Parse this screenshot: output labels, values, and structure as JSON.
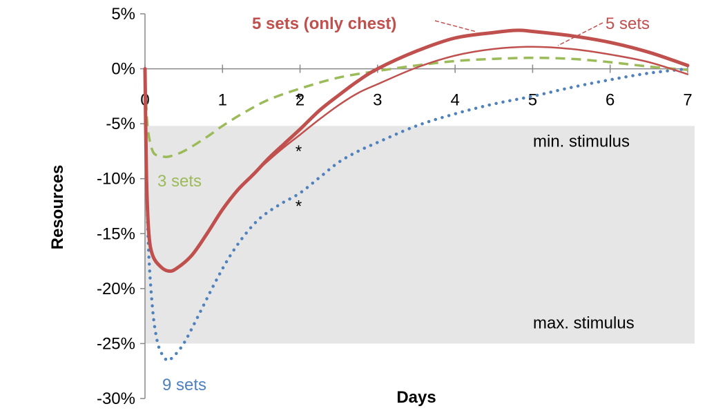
{
  "chart_data": {
    "type": "line",
    "xlabel": "Days",
    "ylabel": "Resources",
    "xlim": [
      0,
      7
    ],
    "ylim": [
      -30,
      5
    ],
    "x_ticks": [
      "0",
      "1",
      "2",
      "3",
      "4",
      "5",
      "6",
      "7"
    ],
    "y_ticks": [
      "5%",
      "0%",
      "-5%",
      "-10%",
      "-15%",
      "-20%",
      "-25%",
      "-30%"
    ],
    "grid": false,
    "band": {
      "from": -5.2,
      "to": -25,
      "color": "#e6e6e6"
    },
    "band_labels": {
      "top": "min. stimulus",
      "bottom": "max. stimulus"
    },
    "series": [
      {
        "name": "5 sets (only chest)",
        "color": "#c0504d",
        "style": "solid-thick",
        "points": [
          [
            0,
            0
          ],
          [
            0.02,
            -10
          ],
          [
            0.05,
            -15
          ],
          [
            0.1,
            -17
          ],
          [
            0.2,
            -18
          ],
          [
            0.3,
            -18.4
          ],
          [
            0.4,
            -18.2
          ],
          [
            0.6,
            -17
          ],
          [
            0.8,
            -15
          ],
          [
            1,
            -12.8
          ],
          [
            1.2,
            -11
          ],
          [
            1.4,
            -9.6
          ],
          [
            1.6,
            -8.1
          ],
          [
            1.8,
            -6.8
          ],
          [
            2,
            -5.5
          ],
          [
            2.25,
            -3.8
          ],
          [
            2.5,
            -2.4
          ],
          [
            2.75,
            -1.1
          ],
          [
            3,
            0
          ],
          [
            3.5,
            1.6
          ],
          [
            4,
            2.8
          ],
          [
            4.5,
            3.3
          ],
          [
            4.8,
            3.5
          ],
          [
            5,
            3.4
          ],
          [
            5.5,
            3.0
          ],
          [
            6,
            2.4
          ],
          [
            6.5,
            1.5
          ],
          [
            7,
            0.3
          ]
        ]
      },
      {
        "name": "5 sets",
        "color": "#c0504d",
        "style": "solid-thin",
        "points": [
          [
            0,
            0
          ],
          [
            0.02,
            -10
          ],
          [
            0.05,
            -15
          ],
          [
            0.1,
            -17
          ],
          [
            0.2,
            -18
          ],
          [
            0.3,
            -18.4
          ],
          [
            0.4,
            -18.2
          ],
          [
            0.6,
            -17
          ],
          [
            0.8,
            -15
          ],
          [
            1,
            -12.8
          ],
          [
            1.2,
            -11
          ],
          [
            1.4,
            -9.6
          ],
          [
            1.6,
            -8.3
          ],
          [
            1.8,
            -7.1
          ],
          [
            2,
            -6.0
          ],
          [
            2.25,
            -4.6
          ],
          [
            2.5,
            -3.3
          ],
          [
            2.75,
            -2.2
          ],
          [
            3,
            -1.4
          ],
          [
            3.5,
            0.1
          ],
          [
            4,
            1.2
          ],
          [
            4.5,
            1.8
          ],
          [
            5,
            2.0
          ],
          [
            5.5,
            1.8
          ],
          [
            6,
            1.3
          ],
          [
            6.5,
            0.6
          ],
          [
            7,
            -0.5
          ]
        ]
      },
      {
        "name": "3 sets",
        "color": "#9bbb59",
        "style": "dashed",
        "points": [
          [
            0,
            0
          ],
          [
            0.03,
            -5
          ],
          [
            0.1,
            -7.5
          ],
          [
            0.2,
            -7.9
          ],
          [
            0.3,
            -8.0
          ],
          [
            0.5,
            -7.5
          ],
          [
            0.8,
            -6.2
          ],
          [
            1,
            -5.2
          ],
          [
            1.3,
            -3.9
          ],
          [
            1.6,
            -2.8
          ],
          [
            2,
            -1.8
          ],
          [
            2.5,
            -0.8
          ],
          [
            3,
            -0.2
          ],
          [
            3.5,
            0.3
          ],
          [
            4,
            0.7
          ],
          [
            4.5,
            0.9
          ],
          [
            5,
            1.0
          ],
          [
            5.5,
            0.9
          ],
          [
            6,
            0.6
          ],
          [
            6.5,
            0.2
          ],
          [
            7,
            -0.1
          ]
        ]
      },
      {
        "name": "9 sets",
        "color": "#4f81bd",
        "style": "dotted",
        "points": [
          [
            0,
            0
          ],
          [
            0.02,
            -10
          ],
          [
            0.05,
            -17
          ],
          [
            0.1,
            -22
          ],
          [
            0.15,
            -24.5
          ],
          [
            0.2,
            -25.7
          ],
          [
            0.28,
            -26.5
          ],
          [
            0.35,
            -26.3
          ],
          [
            0.5,
            -25
          ],
          [
            0.7,
            -22.3
          ],
          [
            0.9,
            -19.5
          ],
          [
            1.1,
            -17
          ],
          [
            1.3,
            -15
          ],
          [
            1.5,
            -13.5
          ],
          [
            1.75,
            -12.3
          ],
          [
            2,
            -11.3
          ],
          [
            2.25,
            -9.9
          ],
          [
            2.5,
            -8.5
          ],
          [
            2.75,
            -7.5
          ],
          [
            3,
            -6.7
          ],
          [
            3.5,
            -5.2
          ],
          [
            4,
            -4.1
          ],
          [
            4.5,
            -3.2
          ],
          [
            5,
            -2.5
          ],
          [
            5.5,
            -1.7
          ],
          [
            6,
            -1.0
          ],
          [
            6.5,
            -0.4
          ],
          [
            7,
            0
          ]
        ]
      }
    ],
    "series_labels": [
      {
        "text": "5 sets (only chest)",
        "series": 0,
        "bold": true
      },
      {
        "text": "5 sets",
        "series": 1,
        "bold": false
      },
      {
        "text": "3 sets",
        "series": 2,
        "bold": false
      },
      {
        "text": "9 sets",
        "series": 3,
        "bold": false
      }
    ],
    "markers": [
      {
        "symbol": "*",
        "x": 2.0,
        "y": -1.8
      },
      {
        "symbol": "*",
        "x": 2.0,
        "y": -6.5
      },
      {
        "symbol": "*",
        "x": 2.0,
        "y": -11.5
      }
    ]
  }
}
